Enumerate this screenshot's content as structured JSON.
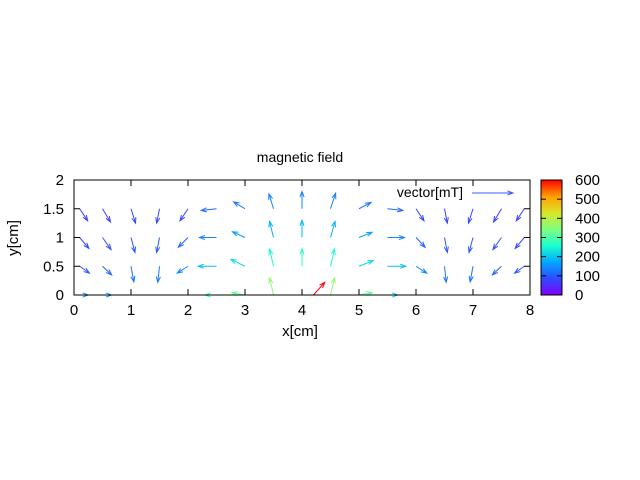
{
  "chart_data": {
    "type": "vector-field",
    "title": "magnetic field",
    "xlabel": "x[cm]",
    "ylabel": "y[cm]",
    "xlim": [
      0,
      8
    ],
    "ylim": [
      0,
      2
    ],
    "x_ticks": [
      "0",
      "1",
      "2",
      "3",
      "4",
      "5",
      "6",
      "7",
      "8"
    ],
    "y_ticks": [
      "0",
      "0.5",
      "1",
      "1.5",
      "2"
    ],
    "legend": {
      "label": "vector[mT]",
      "position": "top-right"
    },
    "colorbar": {
      "range": [
        0,
        600
      ],
      "ticks": [
        "0",
        "100",
        "200",
        "300",
        "400",
        "500",
        "600"
      ],
      "palette": [
        "#7f00ff",
        "#2f4bff",
        "#00a7ff",
        "#1bffd0",
        "#7fff7f",
        "#d8e62a",
        "#ff9f00",
        "#ff0000"
      ]
    },
    "grid": false,
    "vectors": [
      {
        "x": 0.1,
        "y": 1.5,
        "u": 0.14,
        "v": -0.21,
        "m": 70
      },
      {
        "x": 0.1,
        "y": 1.0,
        "u": 0.16,
        "v": -0.19,
        "m": 85
      },
      {
        "x": 0.1,
        "y": 0.5,
        "u": 0.17,
        "v": -0.12,
        "m": 95
      },
      {
        "x": 0.1,
        "y": 0.0,
        "u": 0.15,
        "v": 0.0,
        "m": 140
      },
      {
        "x": 0.5,
        "y": 1.5,
        "u": 0.14,
        "v": -0.23,
        "m": 72
      },
      {
        "x": 0.5,
        "y": 1.0,
        "u": 0.15,
        "v": -0.21,
        "m": 90
      },
      {
        "x": 0.5,
        "y": 0.5,
        "u": 0.16,
        "v": -0.15,
        "m": 110
      },
      {
        "x": 0.5,
        "y": 0.0,
        "u": 0.16,
        "v": 0.0,
        "m": 150
      },
      {
        "x": 1.0,
        "y": 1.5,
        "u": 0.08,
        "v": -0.25,
        "m": 78
      },
      {
        "x": 1.0,
        "y": 1.0,
        "u": 0.07,
        "v": -0.26,
        "m": 95
      },
      {
        "x": 1.0,
        "y": 0.5,
        "u": 0.05,
        "v": -0.27,
        "m": 120
      },
      {
        "x": 1.0,
        "y": 0.0,
        "u": 0.0,
        "v": 0.0,
        "m": 0
      },
      {
        "x": 1.5,
        "y": 1.5,
        "u": -0.05,
        "v": -0.25,
        "m": 80
      },
      {
        "x": 1.5,
        "y": 1.0,
        "u": -0.05,
        "v": -0.26,
        "m": 98
      },
      {
        "x": 1.5,
        "y": 0.5,
        "u": -0.03,
        "v": -0.28,
        "m": 130
      },
      {
        "x": 2.0,
        "y": 1.5,
        "u": -0.14,
        "v": -0.21,
        "m": 85
      },
      {
        "x": 2.0,
        "y": 1.0,
        "u": -0.17,
        "v": -0.17,
        "m": 105
      },
      {
        "x": 2.0,
        "y": 0.5,
        "u": -0.19,
        "v": -0.12,
        "m": 140
      },
      {
        "x": 2.5,
        "y": 1.5,
        "u": -0.27,
        "v": -0.03,
        "m": 110
      },
      {
        "x": 2.5,
        "y": 1.0,
        "u": -0.3,
        "v": 0.0,
        "m": 140
      },
      {
        "x": 2.5,
        "y": 0.5,
        "u": -0.32,
        "v": 0.0,
        "m": 190
      },
      {
        "x": 2.5,
        "y": 0.0,
        "u": -0.2,
        "v": 0.0,
        "m": 260
      },
      {
        "x": 3.0,
        "y": 1.5,
        "u": -0.2,
        "v": 0.12,
        "m": 125
      },
      {
        "x": 3.0,
        "y": 1.0,
        "u": -0.22,
        "v": 0.1,
        "m": 165
      },
      {
        "x": 3.0,
        "y": 0.5,
        "u": -0.25,
        "v": 0.12,
        "m": 220
      },
      {
        "x": 3.0,
        "y": 0.0,
        "u": -0.23,
        "v": 0.04,
        "m": 320
      },
      {
        "x": 3.5,
        "y": 1.5,
        "u": -0.08,
        "v": 0.26,
        "m": 135
      },
      {
        "x": 3.5,
        "y": 1.0,
        "u": -0.07,
        "v": 0.28,
        "m": 180
      },
      {
        "x": 3.5,
        "y": 0.5,
        "u": -0.07,
        "v": 0.3,
        "m": 250
      },
      {
        "x": 3.5,
        "y": 0.0,
        "u": -0.07,
        "v": 0.3,
        "m": 360
      },
      {
        "x": 4.0,
        "y": 1.5,
        "u": 0.0,
        "v": 0.3,
        "m": 140
      },
      {
        "x": 4.0,
        "y": 1.0,
        "u": 0.0,
        "v": 0.3,
        "m": 190
      },
      {
        "x": 4.0,
        "y": 0.5,
        "u": 0.0,
        "v": 0.3,
        "m": 270
      },
      {
        "x": 4.2,
        "y": 0.0,
        "u": 0.2,
        "v": 0.22,
        "m": 600
      },
      {
        "x": 4.5,
        "y": 1.5,
        "u": 0.09,
        "v": 0.27,
        "m": 135
      },
      {
        "x": 4.5,
        "y": 1.0,
        "u": 0.08,
        "v": 0.28,
        "m": 180
      },
      {
        "x": 4.5,
        "y": 0.5,
        "u": 0.07,
        "v": 0.3,
        "m": 250
      },
      {
        "x": 4.5,
        "y": 0.0,
        "u": 0.07,
        "v": 0.3,
        "m": 370
      },
      {
        "x": 5.0,
        "y": 1.5,
        "u": 0.21,
        "v": 0.11,
        "m": 125
      },
      {
        "x": 5.0,
        "y": 1.0,
        "u": 0.23,
        "v": 0.09,
        "m": 165
      },
      {
        "x": 5.0,
        "y": 0.5,
        "u": 0.25,
        "v": 0.1,
        "m": 220
      },
      {
        "x": 5.0,
        "y": 0.0,
        "u": 0.23,
        "v": 0.04,
        "m": 310
      },
      {
        "x": 5.5,
        "y": 1.5,
        "u": 0.27,
        "v": -0.03,
        "m": 110
      },
      {
        "x": 5.5,
        "y": 1.0,
        "u": 0.3,
        "v": 0.0,
        "m": 140
      },
      {
        "x": 5.5,
        "y": 0.5,
        "u": 0.32,
        "v": 0.0,
        "m": 190
      },
      {
        "x": 5.5,
        "y": 0.0,
        "u": 0.18,
        "v": 0.0,
        "m": 200
      },
      {
        "x": 6.0,
        "y": 1.5,
        "u": 0.14,
        "v": -0.21,
        "m": 85
      },
      {
        "x": 6.0,
        "y": 1.0,
        "u": 0.16,
        "v": -0.17,
        "m": 105
      },
      {
        "x": 6.0,
        "y": 0.5,
        "u": 0.19,
        "v": -0.12,
        "m": 140
      },
      {
        "x": 6.5,
        "y": 1.5,
        "u": 0.05,
        "v": -0.25,
        "m": 80
      },
      {
        "x": 6.5,
        "y": 1.0,
        "u": 0.05,
        "v": -0.26,
        "m": 98
      },
      {
        "x": 6.5,
        "y": 0.5,
        "u": 0.03,
        "v": -0.28,
        "m": 130
      },
      {
        "x": 7.0,
        "y": 1.5,
        "u": -0.08,
        "v": -0.25,
        "m": 78
      },
      {
        "x": 7.0,
        "y": 1.0,
        "u": -0.07,
        "v": -0.26,
        "m": 95
      },
      {
        "x": 7.0,
        "y": 0.5,
        "u": -0.05,
        "v": -0.27,
        "m": 120
      },
      {
        "x": 7.5,
        "y": 1.5,
        "u": -0.14,
        "v": -0.23,
        "m": 72
      },
      {
        "x": 7.5,
        "y": 1.0,
        "u": -0.15,
        "v": -0.21,
        "m": 90
      },
      {
        "x": 7.5,
        "y": 0.5,
        "u": -0.16,
        "v": -0.15,
        "m": 110
      },
      {
        "x": 7.9,
        "y": 1.5,
        "u": -0.14,
        "v": -0.21,
        "m": 70
      },
      {
        "x": 7.9,
        "y": 1.0,
        "u": -0.16,
        "v": -0.19,
        "m": 85
      },
      {
        "x": 7.9,
        "y": 0.5,
        "u": -0.17,
        "v": -0.12,
        "m": 95
      }
    ]
  }
}
